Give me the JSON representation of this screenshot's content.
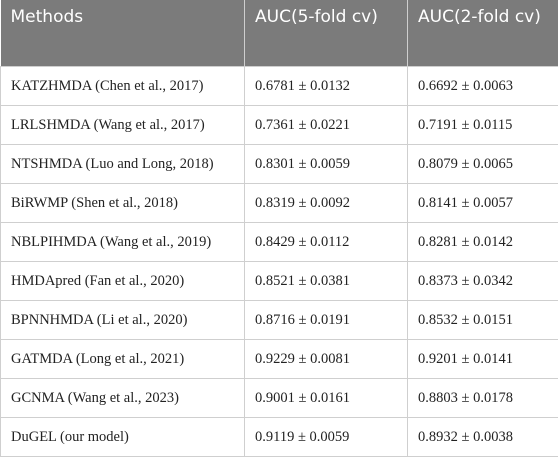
{
  "table": {
    "header": [
      "Methods",
      "AUC(5-fold cv)",
      "AUC(2-fold cv)"
    ],
    "rows": [
      [
        "KATZHMDA (Chen et al., 2017)",
        "0.6781 ± 0.0132",
        "0.6692 ± 0.0063"
      ],
      [
        "LRLSHMDA (Wang et al., 2017)",
        "0.7361 ± 0.0221",
        "0.7191 ± 0.0115"
      ],
      [
        "NTSHMDA (Luo and Long, 2018)",
        "0.8301 ± 0.0059",
        "0.8079 ± 0.0065"
      ],
      [
        "BiRWMP (Shen et al., 2018)",
        "0.8319 ± 0.0092",
        "0.8141 ± 0.0057"
      ],
      [
        "NBLPIHMDA (Wang et al., 2019)",
        "0.8429 ± 0.0112",
        "0.8281 ± 0.0142"
      ],
      [
        "HMDApred (Fan et al., 2020)",
        "0.8521 ± 0.0381",
        "0.8373 ± 0.0342"
      ],
      [
        "BPNNHMDA (Li et al., 2020)",
        "0.8716 ± 0.0191",
        "0.8532 ± 0.0151"
      ],
      [
        "GATMDA (Long et al., 2021)",
        "0.9229 ± 0.0081",
        "0.9201 ± 0.0141"
      ],
      [
        "GCNMA (Wang et al., 2023)",
        "0.9001 ± 0.0161",
        "0.8803 ± 0.0178"
      ],
      [
        "DuGEL (our model)",
        "0.9119 ± 0.0059",
        "0.8932 ± 0.0038"
      ]
    ]
  }
}
